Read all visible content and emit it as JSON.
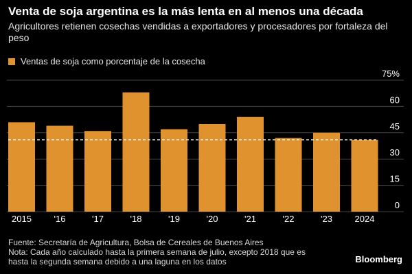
{
  "header": {
    "title": "Venta de soja argentina es la más lenta en al menos una década",
    "subtitle": "Agricultores retienen cosechas vendidas a exportadores y procesadores por fortaleza del peso"
  },
  "chart_data": {
    "type": "bar",
    "categories": [
      "2015",
      "'16",
      "'17",
      "'18",
      "'19",
      "'20",
      "'21",
      "'22",
      "'23",
      "2024"
    ],
    "series": [
      {
        "name": "Ventas de soja como porcentaje de la cosecha",
        "values": [
          51,
          49,
          46,
          68,
          47,
          50,
          54,
          42,
          45,
          41
        ]
      }
    ],
    "reference_line": 41,
    "ylim": [
      0,
      75
    ],
    "yticks": [
      0,
      15,
      30,
      45,
      60,
      75
    ],
    "ytick_labels": [
      "0",
      "15",
      "30",
      "45",
      "60",
      "75%"
    ],
    "colors": {
      "bar": "#e0922e",
      "background": "#000000",
      "grid": "#444444",
      "reference": "#ffffff"
    }
  },
  "footer": {
    "lines": [
      "Fuente: Secretaría de Agricultura, Bolsa de Cereales de Buenos Aires",
      "Nota: Cada año calculado hasta la primera semana de julio, excepto 2018 que es",
      "hasta la segunda semana debido a una laguna en los datos"
    ],
    "brand": "Bloomberg"
  }
}
